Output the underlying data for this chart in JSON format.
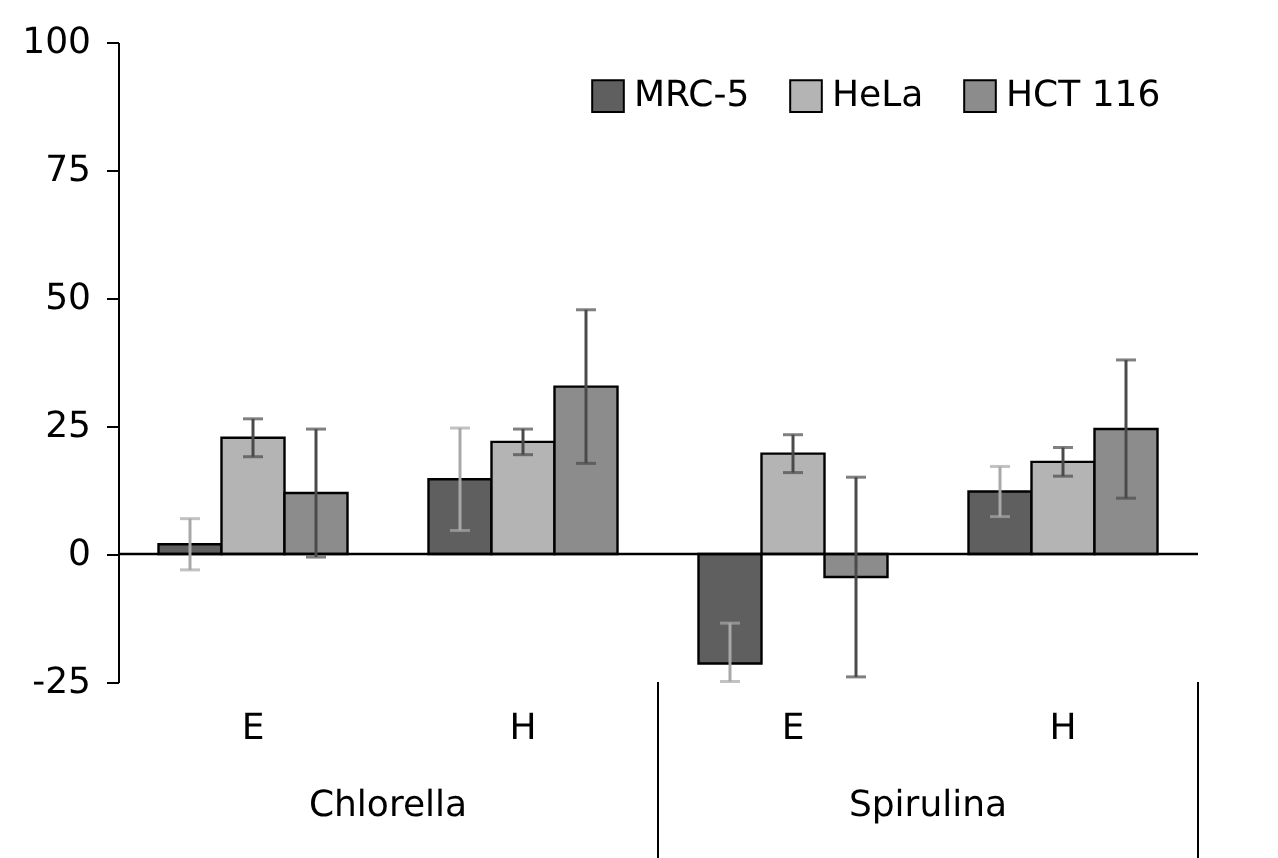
{
  "chart_data": {
    "type": "bar",
    "categories": [
      "E",
      "H",
      "E",
      "H"
    ],
    "series": [
      {
        "name": "MRC-5",
        "color": "#5f5f5f",
        "values": [
          1.9,
          14.6,
          -21.4,
          12.2
        ],
        "errors": [
          5,
          10,
          [
            -24.9,
            -13.5
          ],
          4.9
        ]
      },
      {
        "name": "HeLa",
        "color": "#b4b4b4",
        "values": [
          22.7,
          21.9,
          19.6,
          18.0
        ],
        "errors": [
          3.7,
          2.5,
          3.7,
          2.8
        ]
      },
      {
        "name": "HCT 116",
        "color": "#8c8c8c",
        "values": [
          11.9,
          32.7,
          -4.5,
          24.4
        ],
        "errors": [
          12.5,
          15,
          19.5,
          13.5
        ]
      }
    ],
    "ylim": [
      -25,
      100
    ],
    "yticks": [
      -25,
      0,
      25,
      50,
      75,
      100
    ],
    "annotations": [
      "Chlorella",
      "Spirulina"
    ],
    "legend": "top right"
  }
}
